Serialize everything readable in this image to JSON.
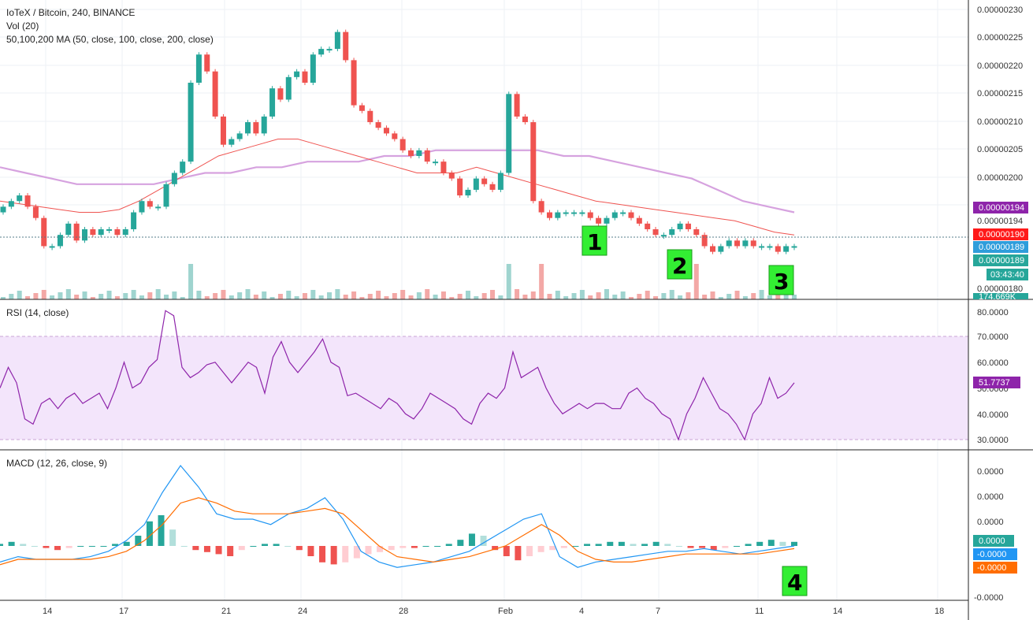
{
  "header": {
    "title": "IoTeX / Bitcoin, 240, BINANCE",
    "vol_label": "Vol (20)",
    "ma_label": "50,100,200 MA (50, close, 100, close, 200, close)",
    "rsi_label": "RSI (14, close)",
    "macd_label": "MACD (12, 26, close, 9)"
  },
  "colors": {
    "up": "#26a69a",
    "down": "#ef5350",
    "ma50": "#ef5350",
    "ma100": "#d6a2df",
    "rsi": "#8e24aa",
    "rsi_band": "#f3e5fb",
    "macd": "#2196f3",
    "signal": "#ff6d00",
    "note_bg": "#33ee33",
    "hline": "#547c88"
  },
  "price_axis": [
    "0.00000230",
    "0.00000225",
    "0.00000220",
    "0.00000215",
    "0.00000210",
    "0.00000205",
    "0.00000200",
    "0.00000194",
    "0.00000180"
  ],
  "price_tags": {
    "ma100": "0.00000194",
    "ma50": "0.00000190",
    "last": "0.00000189",
    "last2": "0.00000189",
    "countdown": "03:43:40",
    "volume": "174.669K"
  },
  "rsi_axis": [
    "80.0000",
    "70.0000",
    "60.0000",
    "50.0000",
    "40.0000",
    "30.0000"
  ],
  "rsi_tag": "51.7737",
  "macd_axis": [
    "0.0000",
    "0.0000",
    "0.0000",
    "-0.0000"
  ],
  "macd_tags": {
    "hist": "0.0000",
    "macd": "-0.0000",
    "signal": "-0.0000"
  },
  "x_axis": [
    "14",
    "17",
    "21",
    "24",
    "28",
    "Feb",
    "4",
    "7",
    "11",
    "14",
    "18"
  ],
  "notes": [
    "1",
    "2",
    "3",
    "4"
  ],
  "chart_data": [
    {
      "type": "candlestick",
      "title": "IoTeX / Bitcoin, 240, BINANCE",
      "ylim": [
        1.79e-06,
        2.31e-06
      ],
      "ohlc_close": [
        1.96,
        1.97,
        1.98,
        1.96,
        1.94,
        1.89,
        1.89,
        1.91,
        1.93,
        1.9,
        1.92,
        1.91,
        1.92,
        1.92,
        1.91,
        1.92,
        1.95,
        1.97,
        1.96,
        1.96,
        2.0,
        2.02,
        2.04,
        2.18,
        2.23,
        2.2,
        2.12,
        2.07,
        2.08,
        2.09,
        2.11,
        2.09,
        2.12,
        2.17,
        2.15,
        2.19,
        2.2,
        2.18,
        2.23,
        2.24,
        2.24,
        2.27,
        2.22,
        2.14,
        2.13,
        2.11,
        2.1,
        2.09,
        2.08,
        2.06,
        2.05,
        2.06,
        2.04,
        2.04,
        2.02,
        2.01,
        1.98,
        1.99,
        2.01,
        2.0,
        1.99,
        2.02,
        2.16,
        2.12,
        2.11,
        1.97,
        1.95,
        1.94,
        1.95,
        1.95,
        1.95,
        1.95,
        1.94,
        1.93,
        1.94,
        1.95,
        1.95,
        1.94,
        1.93,
        1.92,
        1.91,
        1.91,
        1.92,
        1.93,
        1.92,
        1.91,
        1.89,
        1.88,
        1.89,
        1.9,
        1.89,
        1.9,
        1.89,
        1.89,
        1.89,
        1.88,
        1.89,
        1.89
      ],
      "series": [
        {
          "name": "MA 50",
          "values": [
            1.97,
            1.965,
            1.96,
            1.955,
            1.95,
            1.95,
            1.955,
            1.97,
            1.99,
            2.01,
            2.03,
            2.05,
            2.06,
            2.07,
            2.08,
            2.08,
            2.07,
            2.06,
            2.05,
            2.04,
            2.03,
            2.02,
            2.02,
            2.02,
            2.03,
            2.02,
            2.01,
            2.0,
            1.99,
            1.98,
            1.97,
            1.965,
            1.96,
            1.955,
            1.95,
            1.945,
            1.94,
            1.935,
            1.925,
            1.915,
            1.91
          ]
        },
        {
          "name": "MA 100",
          "values": [
            2.03,
            2.02,
            2.01,
            2.0,
            2.0,
            2.0,
            2.0,
            2.01,
            2.02,
            2.02,
            2.03,
            2.03,
            2.04,
            2.04,
            2.04,
            2.05,
            2.05,
            2.06,
            2.06,
            2.06,
            2.06,
            2.06,
            2.05,
            2.05,
            2.04,
            2.03,
            2.02,
            2.01,
            1.99,
            1.97,
            1.96,
            1.95
          ]
        }
      ]
    },
    {
      "type": "line",
      "title": "RSI (14, close)",
      "ylim": [
        27,
        83
      ],
      "reference_lines": [
        70,
        30
      ],
      "series": [
        {
          "name": "RSI",
          "values": [
            50,
            58,
            52,
            38,
            36,
            44,
            46,
            42,
            46,
            48,
            44,
            46,
            48,
            42,
            50,
            60,
            50,
            52,
            58,
            61,
            80,
            78,
            58,
            54,
            56,
            59,
            60,
            56,
            52,
            56,
            60,
            58,
            48,
            62,
            68,
            60,
            56,
            60,
            64,
            69,
            60,
            58,
            47,
            48,
            46,
            44,
            42,
            46,
            44,
            40,
            38,
            42,
            48,
            46,
            44,
            42,
            38,
            36,
            44,
            48,
            46,
            50,
            64,
            54,
            56,
            58,
            50,
            44,
            40,
            42,
            44,
            42,
            44,
            44,
            42,
            42,
            48,
            50,
            46,
            44,
            40,
            38,
            30,
            40,
            46,
            54,
            48,
            42,
            40,
            36,
            30,
            40,
            44,
            54,
            46,
            48,
            52
          ]
        }
      ]
    },
    {
      "type": "bar",
      "title": "MACD (12, 26, close, 9)",
      "series": [
        {
          "name": "Histogram",
          "values": [
            1,
            2,
            1,
            0,
            -1,
            -2,
            -1,
            0,
            0,
            0,
            1,
            2,
            5,
            12,
            15,
            8,
            0,
            -2,
            -3,
            -4,
            -5,
            -2,
            0,
            1,
            1,
            0,
            -2,
            -5,
            -8,
            -9,
            -8,
            -6,
            -4,
            -3,
            -2,
            -1,
            -1,
            0,
            0,
            1,
            3,
            6,
            5,
            -2,
            -5,
            -7,
            -5,
            -3,
            -2,
            -1,
            0,
            1,
            1,
            2,
            2,
            1,
            1,
            2,
            1,
            0,
            -1,
            -1,
            -2,
            -1,
            0,
            1,
            2,
            3,
            2,
            2
          ]
        },
        {
          "name": "MACD",
          "values": [
            -6,
            -4,
            -5,
            -5,
            -5,
            -4,
            -2,
            2,
            8,
            20,
            30,
            22,
            12,
            10,
            10,
            8,
            12,
            14,
            18,
            10,
            -2,
            -6,
            -8,
            -7,
            -6,
            -4,
            -2,
            2,
            6,
            10,
            12,
            -4,
            -8,
            -6,
            -5,
            -4,
            -3,
            -2,
            -2,
            -1,
            -2,
            -3,
            -2,
            -1,
            0
          ]
        },
        {
          "name": "Signal",
          "values": [
            -7,
            -5,
            -5,
            -5,
            -5,
            -5,
            -4,
            -2,
            2,
            8,
            16,
            18,
            16,
            13,
            12,
            12,
            12,
            13,
            14,
            12,
            6,
            0,
            -4,
            -5,
            -6,
            -5,
            -4,
            -2,
            0,
            4,
            8,
            4,
            -2,
            -5,
            -6,
            -6,
            -5,
            -4,
            -3,
            -3,
            -3,
            -3,
            -3,
            -2,
            -1
          ]
        }
      ]
    }
  ]
}
